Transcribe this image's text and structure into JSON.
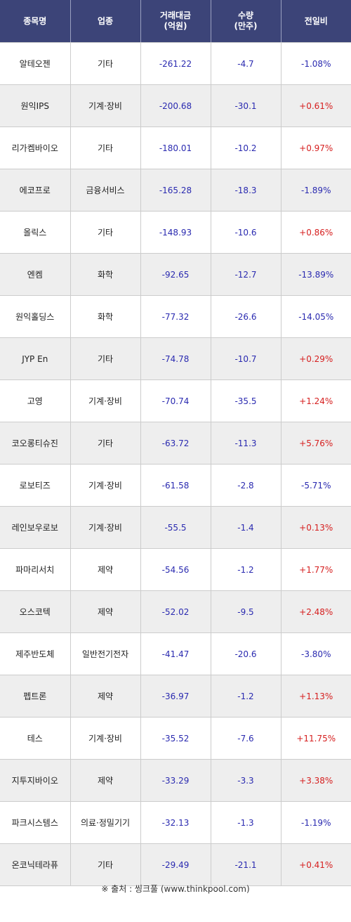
{
  "header": {
    "name": "종목명",
    "sector": "업종",
    "amount_l1": "거래대금",
    "amount_l2": "(억원)",
    "qty_l1": "수량",
    "qty_l2": "(만주)",
    "change": "전일비"
  },
  "rows": [
    {
      "name": "알테오젠",
      "sector": "기타",
      "amount": "-261.22",
      "qty": "-4.7",
      "change": "-1.08%",
      "dir": "down"
    },
    {
      "name": "원익IPS",
      "sector": "기계·장비",
      "amount": "-200.68",
      "qty": "-30.1",
      "change": "+0.61%",
      "dir": "up"
    },
    {
      "name": "리가켐바이오",
      "sector": "기타",
      "amount": "-180.01",
      "qty": "-10.2",
      "change": "+0.97%",
      "dir": "up"
    },
    {
      "name": "에코프로",
      "sector": "금융서비스",
      "amount": "-165.28",
      "qty": "-18.3",
      "change": "-1.89%",
      "dir": "down"
    },
    {
      "name": "올릭스",
      "sector": "기타",
      "amount": "-148.93",
      "qty": "-10.6",
      "change": "+0.86%",
      "dir": "up"
    },
    {
      "name": "엔켐",
      "sector": "화학",
      "amount": "-92.65",
      "qty": "-12.7",
      "change": "-13.89%",
      "dir": "down"
    },
    {
      "name": "원익홀딩스",
      "sector": "화학",
      "amount": "-77.32",
      "qty": "-26.6",
      "change": "-14.05%",
      "dir": "down"
    },
    {
      "name": "JYP En",
      "sector": "기타",
      "amount": "-74.78",
      "qty": "-10.7",
      "change": "+0.29%",
      "dir": "up"
    },
    {
      "name": "고영",
      "sector": "기계·장비",
      "amount": "-70.74",
      "qty": "-35.5",
      "change": "+1.24%",
      "dir": "up"
    },
    {
      "name": "코오롱티슈진",
      "sector": "기타",
      "amount": "-63.72",
      "qty": "-11.3",
      "change": "+5.76%",
      "dir": "up"
    },
    {
      "name": "로보티즈",
      "sector": "기계·장비",
      "amount": "-61.58",
      "qty": "-2.8",
      "change": "-5.71%",
      "dir": "down"
    },
    {
      "name": "레인보우로보",
      "sector": "기계·장비",
      "amount": "-55.5",
      "qty": "-1.4",
      "change": "+0.13%",
      "dir": "up"
    },
    {
      "name": "파마리서치",
      "sector": "제약",
      "amount": "-54.56",
      "qty": "-1.2",
      "change": "+1.77%",
      "dir": "up"
    },
    {
      "name": "오스코텍",
      "sector": "제약",
      "amount": "-52.02",
      "qty": "-9.5",
      "change": "+2.48%",
      "dir": "up"
    },
    {
      "name": "제주반도체",
      "sector": "일반전기전자",
      "amount": "-41.47",
      "qty": "-20.6",
      "change": "-3.80%",
      "dir": "down"
    },
    {
      "name": "펩트론",
      "sector": "제약",
      "amount": "-36.97",
      "qty": "-1.2",
      "change": "+1.13%",
      "dir": "up"
    },
    {
      "name": "테스",
      "sector": "기계·장비",
      "amount": "-35.52",
      "qty": "-7.6",
      "change": "+11.75%",
      "dir": "up"
    },
    {
      "name": "지투지바이오",
      "sector": "제약",
      "amount": "-33.29",
      "qty": "-3.3",
      "change": "+3.38%",
      "dir": "up"
    },
    {
      "name": "파크시스템스",
      "sector": "의료·정밀기기",
      "amount": "-32.13",
      "qty": "-1.3",
      "change": "-1.19%",
      "dir": "down"
    },
    {
      "name": "온코닉테라퓨",
      "sector": "기타",
      "amount": "-29.49",
      "qty": "-21.1",
      "change": "+0.41%",
      "dir": "up"
    }
  ],
  "source": "※ 출처 : 씽크풀 (www.thinkpool.com)",
  "colors": {
    "header_bg": "#3c4478",
    "up": "#d62020",
    "down": "#2a2ab0"
  }
}
